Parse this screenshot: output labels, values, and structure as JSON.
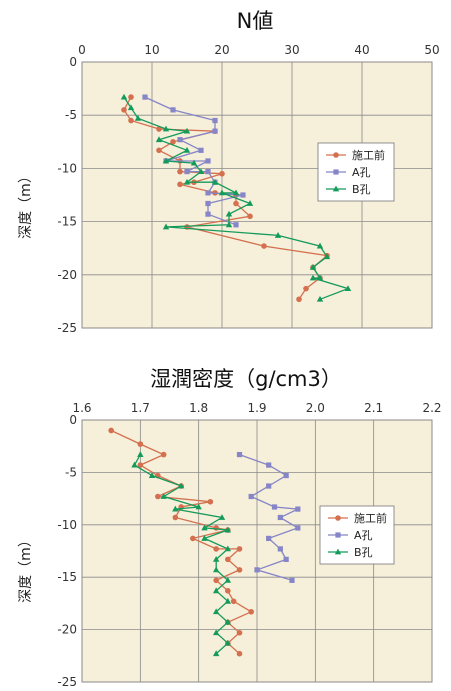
{
  "colors": {
    "plot_bg": "#f6efd9",
    "grid": "#8a8a8a",
    "series_before": "#d4704f",
    "series_a": "#8585c8",
    "series_b": "#149b5b"
  },
  "chart_data": [
    {
      "type": "line",
      "title": "N値",
      "xlabel": "",
      "ylabel": "深度（m）",
      "xlim": [
        0,
        50
      ],
      "ylim": [
        0,
        -25
      ],
      "xticks": [
        0,
        10,
        20,
        30,
        40,
        50
      ],
      "yticks": [
        0,
        -5,
        -10,
        -15,
        -20,
        -25
      ],
      "xtick_labels": [
        "0",
        "10",
        "20",
        "30",
        "40",
        "50"
      ],
      "ytick_labels": [
        "0",
        "-5",
        "-10",
        "-15",
        "-20",
        "-25"
      ],
      "grid": true,
      "legend_position": "right",
      "series": [
        {
          "name": "施工前",
          "color_key": "series_before",
          "marker": "circle",
          "points": [
            [
              7,
              -3.3
            ],
            [
              6,
              -4.5
            ],
            [
              7,
              -5.5
            ],
            [
              11,
              -6.3
            ],
            [
              19,
              -6.5
            ],
            [
              13,
              -7.5
            ],
            [
              11,
              -8.3
            ],
            [
              14,
              -9.3
            ],
            [
              14,
              -10.3
            ],
            [
              20,
              -10.5
            ],
            [
              16,
              -11.3
            ],
            [
              14,
              -11.5
            ],
            [
              19,
              -12.3
            ],
            [
              22,
              -12.5
            ],
            [
              22,
              -13.3
            ],
            [
              24,
              -14.5
            ],
            [
              15,
              -15.5
            ],
            [
              26,
              -17.3
            ],
            [
              35,
              -18.2
            ],
            [
              33,
              -19.3
            ],
            [
              34,
              -20.3
            ],
            [
              32,
              -21.3
            ],
            [
              31,
              -22.3
            ]
          ]
        },
        {
          "name": "A孔",
          "color_key": "series_a",
          "marker": "square",
          "points": [
            [
              9,
              -3.3
            ],
            [
              13,
              -4.5
            ],
            [
              19,
              -5.5
            ],
            [
              19,
              -6.5
            ],
            [
              14,
              -7.3
            ],
            [
              17,
              -8.3
            ],
            [
              12,
              -9.3
            ],
            [
              18,
              -9.3
            ],
            [
              15,
              -10.3
            ],
            [
              18,
              -10.3
            ],
            [
              19,
              -11.3
            ],
            [
              18,
              -12.3
            ],
            [
              23,
              -12.5
            ],
            [
              18,
              -13.3
            ],
            [
              18,
              -14.3
            ],
            [
              22,
              -15.3
            ]
          ]
        },
        {
          "name": "B孔",
          "color_key": "series_b",
          "marker": "triangle",
          "points": [
            [
              6,
              -3.3
            ],
            [
              7,
              -4.3
            ],
            [
              8,
              -5.3
            ],
            [
              12,
              -6.3
            ],
            [
              15,
              -6.5
            ],
            [
              11,
              -7.3
            ],
            [
              15,
              -8.3
            ],
            [
              12,
              -9.3
            ],
            [
              16,
              -9.5
            ],
            [
              17,
              -10.3
            ],
            [
              15,
              -11.3
            ],
            [
              19,
              -11.3
            ],
            [
              22,
              -12.3
            ],
            [
              20,
              -12.3
            ],
            [
              24,
              -13.3
            ],
            [
              21,
              -14.3
            ],
            [
              21,
              -15.3
            ],
            [
              12,
              -15.5
            ],
            [
              28,
              -16.3
            ],
            [
              34,
              -17.3
            ],
            [
              35,
              -18.3
            ],
            [
              33,
              -19.3
            ],
            [
              34,
              -20.3
            ],
            [
              33,
              -20.3
            ],
            [
              38,
              -21.3
            ],
            [
              34,
              -22.3
            ]
          ]
        }
      ]
    },
    {
      "type": "line",
      "title": "湿潤密度（g/cm3）",
      "xlabel": "",
      "ylabel": "深度（m）",
      "xlim": [
        1.6,
        2.2
      ],
      "ylim": [
        0,
        -25
      ],
      "xticks": [
        1.6,
        1.7,
        1.8,
        1.9,
        2.0,
        2.1,
        2.2
      ],
      "yticks": [
        0,
        -5,
        -10,
        -15,
        -20,
        -25
      ],
      "xtick_labels": [
        "1.6",
        "1.7",
        "1.8",
        "1.9",
        "2.0",
        "2.1",
        "2.2"
      ],
      "ytick_labels": [
        "0",
        "-5",
        "-10",
        "-15",
        "-20",
        "-25"
      ],
      "grid": true,
      "legend_position": "right",
      "series": [
        {
          "name": "施工前",
          "color_key": "series_before",
          "marker": "circle",
          "points": [
            [
              1.65,
              -1.0
            ],
            [
              1.7,
              -2.3
            ],
            [
              1.74,
              -3.3
            ],
            [
              1.7,
              -4.3
            ],
            [
              1.73,
              -5.3
            ],
            [
              1.77,
              -6.3
            ],
            [
              1.73,
              -7.3
            ],
            [
              1.82,
              -7.8
            ],
            [
              1.77,
              -8.3
            ],
            [
              1.76,
              -9.3
            ],
            [
              1.83,
              -10.3
            ],
            [
              1.85,
              -10.5
            ],
            [
              1.79,
              -11.3
            ],
            [
              1.83,
              -12.3
            ],
            [
              1.87,
              -12.3
            ],
            [
              1.85,
              -13.3
            ],
            [
              1.87,
              -14.3
            ],
            [
              1.83,
              -15.3
            ],
            [
              1.85,
              -16.3
            ],
            [
              1.86,
              -17.3
            ],
            [
              1.89,
              -18.3
            ],
            [
              1.85,
              -19.3
            ],
            [
              1.87,
              -20.3
            ],
            [
              1.85,
              -21.3
            ],
            [
              1.87,
              -22.3
            ]
          ]
        },
        {
          "name": "A孔",
          "color_key": "series_a",
          "marker": "square",
          "points": [
            [
              1.87,
              -3.3
            ],
            [
              1.92,
              -4.3
            ],
            [
              1.95,
              -5.3
            ],
            [
              1.92,
              -6.3
            ],
            [
              1.89,
              -7.3
            ],
            [
              1.93,
              -8.3
            ],
            [
              1.97,
              -8.5
            ],
            [
              1.94,
              -9.3
            ],
            [
              1.97,
              -10.3
            ],
            [
              1.92,
              -11.3
            ],
            [
              1.94,
              -12.3
            ],
            [
              1.95,
              -13.3
            ],
            [
              1.9,
              -14.3
            ],
            [
              1.96,
              -15.3
            ]
          ]
        },
        {
          "name": "B孔",
          "color_key": "series_b",
          "marker": "triangle",
          "points": [
            [
              1.7,
              -3.3
            ],
            [
              1.69,
              -4.3
            ],
            [
              1.72,
              -5.3
            ],
            [
              1.77,
              -6.3
            ],
            [
              1.74,
              -7.3
            ],
            [
              1.8,
              -8.3
            ],
            [
              1.76,
              -8.5
            ],
            [
              1.84,
              -9.3
            ],
            [
              1.81,
              -10.3
            ],
            [
              1.85,
              -10.5
            ],
            [
              1.81,
              -11.3
            ],
            [
              1.85,
              -12.3
            ],
            [
              1.83,
              -13.3
            ],
            [
              1.83,
              -14.3
            ],
            [
              1.85,
              -15.3
            ],
            [
              1.83,
              -16.3
            ],
            [
              1.85,
              -17.3
            ],
            [
              1.83,
              -18.3
            ],
            [
              1.85,
              -19.3
            ],
            [
              1.83,
              -20.3
            ],
            [
              1.85,
              -21.3
            ],
            [
              1.83,
              -22.3
            ]
          ]
        }
      ]
    }
  ]
}
